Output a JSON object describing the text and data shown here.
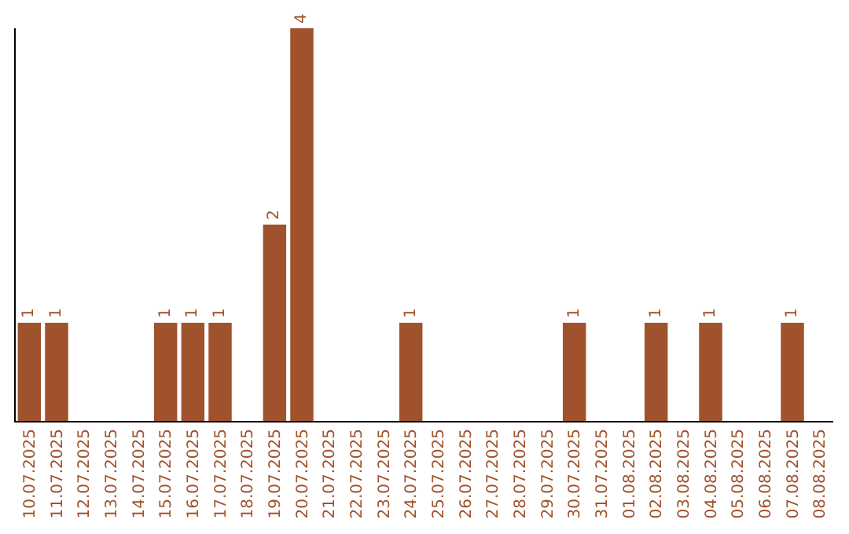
{
  "chart_data": {
    "type": "bar",
    "categories": [
      "10.07.2025",
      "11.07.2025",
      "12.07.2025",
      "13.07.2025",
      "14.07.2025",
      "15.07.2025",
      "16.07.2025",
      "17.07.2025",
      "18.07.2025",
      "19.07.2025",
      "20.07.2025",
      "21.07.2025",
      "22.07.2025",
      "23.07.2025",
      "24.07.2025",
      "25.07.2025",
      "26.07.2025",
      "27.07.2025",
      "28.07.2025",
      "29.07.2025",
      "30.07.2025",
      "31.07.2025",
      "01.08.2025",
      "02.08.2025",
      "03.08.2025",
      "04.08.2025",
      "05.08.2025",
      "06.08.2025",
      "07.08.2025",
      "08.08.2025"
    ],
    "series": [
      {
        "color": "#a0522d",
        "values": [
          1,
          1,
          0,
          0,
          0,
          1,
          1,
          1,
          0,
          2,
          4,
          0,
          0,
          0,
          1,
          0,
          0,
          0,
          0,
          0,
          1,
          0,
          0,
          1,
          0,
          1,
          0,
          0,
          1,
          0
        ],
        "value_labels": [
          "1",
          "1",
          null,
          null,
          null,
          "1",
          "1",
          "1",
          null,
          "2",
          "4",
          null,
          null,
          null,
          "1",
          null,
          null,
          null,
          null,
          null,
          "1",
          null,
          null,
          "1",
          null,
          "1",
          null,
          null,
          "1",
          null
        ]
      }
    ],
    "grid": false,
    "legend": false
  }
}
